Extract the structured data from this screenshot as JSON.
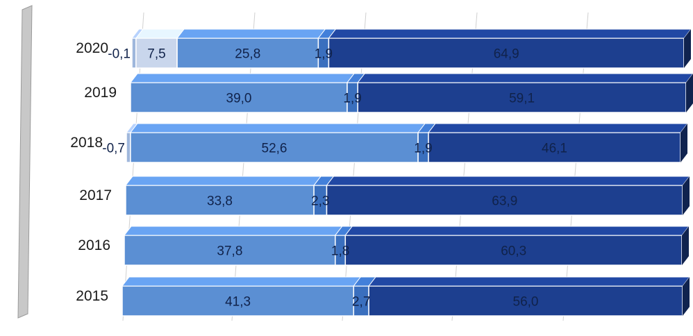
{
  "chart_data": {
    "type": "bar",
    "orientation": "horizontal",
    "stacked": true,
    "three_d": true,
    "categories": [
      "2020",
      "2019",
      "2018",
      "2017",
      "2016",
      "2015"
    ],
    "category_labels": [
      "2020",
      "2019",
      "2018",
      "2017",
      "2016",
      "2015"
    ],
    "series": [
      {
        "values": [
          -0.1,
          null,
          -0.7,
          null,
          null,
          null
        ],
        "labels": [
          "-0,1",
          "",
          "-0,7",
          "",
          "",
          ""
        ]
      },
      {
        "values": [
          7.5,
          null,
          null,
          null,
          null,
          null
        ],
        "labels": [
          "7,5",
          "",
          "",
          "",
          "",
          ""
        ]
      },
      {
        "values": [
          25.8,
          39.0,
          52.6,
          33.8,
          37.8,
          41.3
        ],
        "labels": [
          "25,8",
          "39,0",
          "52,6",
          "33,8",
          "37,8",
          "41,3"
        ]
      },
      {
        "values": [
          1.9,
          1.9,
          1.9,
          2.3,
          1.8,
          2.7
        ],
        "labels": [
          "1,9",
          "1,9",
          "1,9",
          "2,3",
          "1,8",
          "2,7"
        ]
      },
      {
        "values": [
          64.9,
          59.1,
          46.1,
          63.9,
          60.3,
          56.0
        ],
        "labels": [
          "64,9",
          "59,1",
          "46,1",
          "63,9",
          "60,3",
          "56,0"
        ]
      }
    ],
    "xlim": [
      0,
      100
    ],
    "grid": true,
    "legend": "none",
    "colors": {
      "neg": "#9fb7dc",
      "s1": "#c9d6ec",
      "s2": "#5b8fd3",
      "s3": "#3a6fbe",
      "s4": "#1d3f8f",
      "frame": "#b8b8b8",
      "grid": "#d0d0d0"
    }
  }
}
